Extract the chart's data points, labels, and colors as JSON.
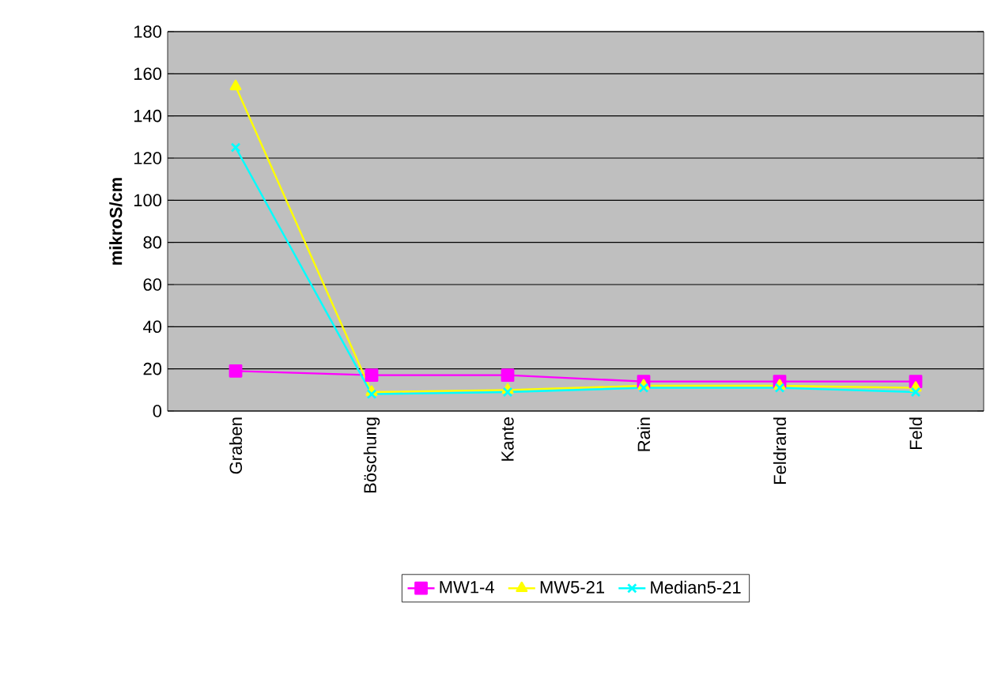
{
  "chart_data": {
    "type": "line",
    "ylabel": "mikroS/cm",
    "categories": [
      "Graben",
      "Böschung",
      "Kante",
      "Rain",
      "Feldrand",
      "Feld"
    ],
    "series": [
      {
        "name": "MW1-4",
        "color": "#ff00ff",
        "marker": "square",
        "values": [
          19,
          17,
          17,
          14,
          14,
          14
        ]
      },
      {
        "name": "MW5-21",
        "color": "#ffff00",
        "marker": "triangle",
        "values": [
          154,
          9,
          10,
          12,
          12,
          11
        ]
      },
      {
        "name": "Median5-21",
        "color": "#00ffff",
        "marker": "cross",
        "values": [
          125,
          8,
          9,
          11,
          11,
          9
        ]
      }
    ],
    "ylim": [
      0,
      180
    ],
    "yticks": [
      0,
      20,
      40,
      60,
      80,
      100,
      120,
      140,
      160,
      180
    ],
    "grid": "y",
    "legend": "bottom"
  }
}
